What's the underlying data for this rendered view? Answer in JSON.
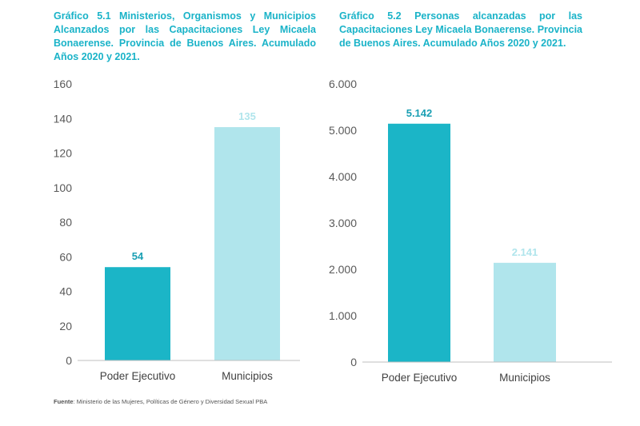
{
  "colors": {
    "title": "#1ab3c8",
    "dark_bar": "#1bb5c7",
    "light_bar": "#b0e5ec",
    "axis": "#bfbfbf",
    "tick_text": "#595959"
  },
  "source": {
    "label": "Fuente",
    "text": ": Ministerio de las Mujeres, Políticas de Género y Diversidad Sexual PBA"
  },
  "chart_data": [
    {
      "type": "bar",
      "title": "Gráfico 5.1 Ministerios, Organismos y Municipios Alcanzados por las Capacitaciones Ley Micaela Bonaerense. Provincia de Buenos Aires. Acumulado Años 2020 y 2021.",
      "categories": [
        "Poder Ejecutivo",
        "Municipios"
      ],
      "values": [
        54,
        135
      ],
      "data_labels": [
        "54",
        "135"
      ],
      "bar_colors": [
        "#1bb5c7",
        "#b0e5ec"
      ],
      "label_colors": [
        "#1a9fb3",
        "#b0e5ec"
      ],
      "ylim": [
        0,
        160
      ],
      "yticks": [
        0,
        20,
        40,
        60,
        80,
        100,
        120,
        140,
        160
      ],
      "ytick_labels": [
        "0",
        "20",
        "40",
        "60",
        "80",
        "100",
        "120",
        "140",
        "160"
      ],
      "xlabel": "",
      "ylabel": "",
      "grid": false,
      "legend": "none"
    },
    {
      "type": "bar",
      "title": "Gráfico 5.2 Personas alcanzadas por las Capacitaciones Ley Micaela Bonaerense. Provincia de Buenos Aires. Acumulado Años 2020 y 2021.",
      "categories": [
        "Poder Ejecutivo",
        "Municipios"
      ],
      "values": [
        5142,
        2141
      ],
      "data_labels": [
        "5.142",
        "2.141"
      ],
      "bar_colors": [
        "#1bb5c7",
        "#b0e5ec"
      ],
      "label_colors": [
        "#1a9fb3",
        "#b0e5ec"
      ],
      "ylim": [
        0,
        6000
      ],
      "yticks": [
        0,
        1000,
        2000,
        3000,
        4000,
        5000,
        6000
      ],
      "ytick_labels": [
        "0",
        "1.000",
        "2.000",
        "3.000",
        "4.000",
        "5.000",
        "6.000"
      ],
      "xlabel": "",
      "ylabel": "",
      "grid": false,
      "legend": "none"
    }
  ]
}
